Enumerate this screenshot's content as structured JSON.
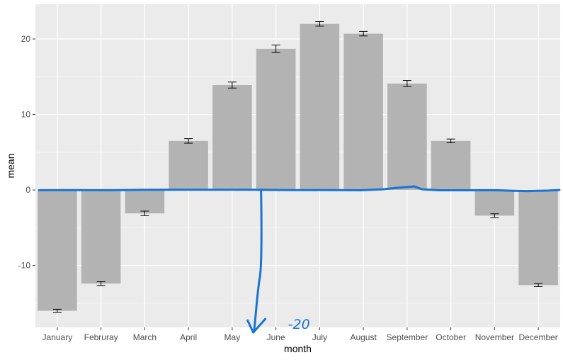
{
  "chart_data": {
    "type": "bar",
    "title": "",
    "xlabel": "month",
    "ylabel": "mean",
    "categories": [
      "January",
      "Februray",
      "March",
      "April",
      "May",
      "June",
      "July",
      "August",
      "September",
      "October",
      "November",
      "December"
    ],
    "values": [
      -16.0,
      -12.4,
      -3.1,
      6.5,
      13.9,
      18.7,
      22.0,
      20.7,
      14.1,
      6.5,
      -3.4,
      -12.6
    ],
    "error": [
      0.2,
      0.25,
      0.3,
      0.3,
      0.4,
      0.5,
      0.3,
      0.3,
      0.4,
      0.25,
      0.25,
      0.2
    ],
    "ylim": [
      -18.2,
      24.6
    ],
    "yticks": [
      -10,
      0,
      10,
      20
    ],
    "grid": true,
    "colors": {
      "panel": "#ebebeb",
      "grid": "#ffffff",
      "bar": "#b3b3b3",
      "errorbar": "#000000",
      "annotation": "#1a74d2"
    },
    "annotation": {
      "text": "-20",
      "drawn_line_y": 0,
      "arrow_x_category": "June"
    }
  }
}
